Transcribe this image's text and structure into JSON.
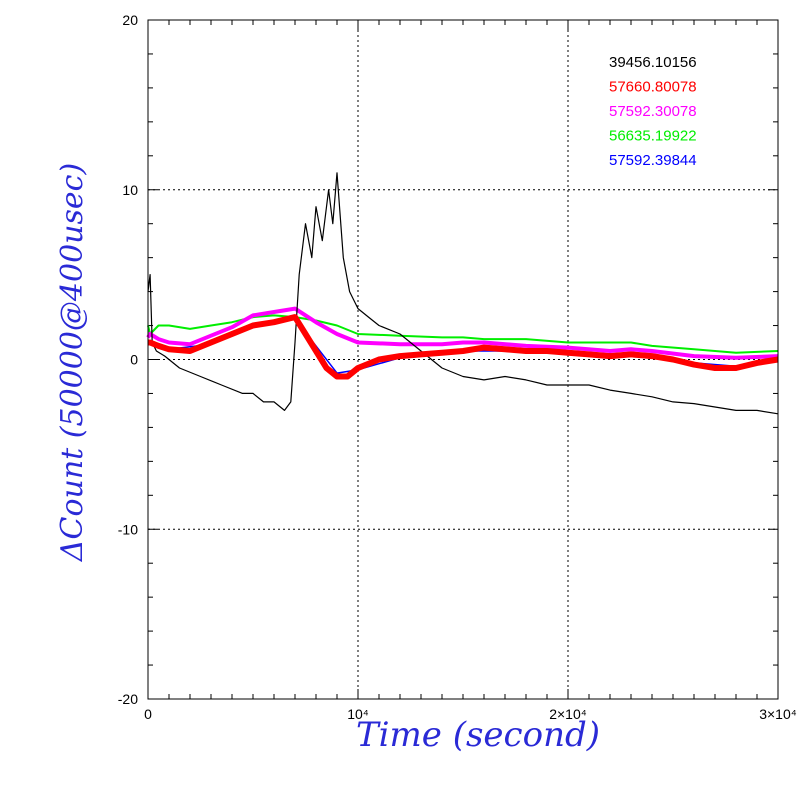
{
  "chart_data": {
    "type": "line",
    "xlabel": "Time (second)",
    "ylabel": "ΔCount (50000@400usec)",
    "xlim": [
      0,
      30000
    ],
    "ylim": [
      -20,
      20
    ],
    "grid": true,
    "legend_position": "top-right",
    "x_ticks": [
      {
        "value": 0,
        "label": "0"
      },
      {
        "value": 10000,
        "label": "10⁴"
      },
      {
        "value": 20000,
        "label": "2×10⁴"
      },
      {
        "value": 30000,
        "label": "3×10⁴"
      }
    ],
    "y_ticks": [
      {
        "value": 20,
        "label": "20"
      },
      {
        "value": 10,
        "label": "10"
      },
      {
        "value": 0,
        "label": "0"
      },
      {
        "value": -10,
        "label": "-10"
      },
      {
        "value": -20,
        "label": "-20"
      }
    ],
    "series": [
      {
        "name": "39456.10156",
        "color": "#000000",
        "x": [
          0,
          100,
          200,
          400,
          800,
          1500,
          2500,
          3500,
          4500,
          5000,
          5500,
          6000,
          6500,
          6800,
          7000,
          7200,
          7500,
          7800,
          8000,
          8300,
          8600,
          8800,
          9000,
          9300,
          9600,
          9800,
          10000,
          10500,
          11000,
          12000,
          13000,
          14000,
          15000,
          16000,
          17000,
          18000,
          19000,
          20000,
          21000,
          22000,
          23000,
          24000,
          25000,
          26000,
          27000,
          28000,
          29000,
          30000
        ],
        "y": [
          4,
          5,
          1,
          0.5,
          0.2,
          -0.5,
          -1,
          -1.5,
          -2,
          -2,
          -2.5,
          -2.5,
          -3,
          -2.5,
          1,
          5,
          8,
          6,
          9,
          7,
          10,
          8,
          11,
          6,
          4,
          3.5,
          3,
          2.5,
          2,
          1.5,
          0.5,
          -0.5,
          -1,
          -1.2,
          -1,
          -1.2,
          -1.5,
          -1.5,
          -1.5,
          -1.8,
          -2,
          -2.2,
          -2.5,
          -2.6,
          -2.8,
          -3,
          -3,
          -3.2
        ]
      },
      {
        "name": "57660.80078",
        "color": "#ff0000",
        "x": [
          0,
          100,
          500,
          1000,
          2000,
          3000,
          4000,
          5000,
          6000,
          7000,
          7500,
          8000,
          8500,
          9000,
          9500,
          10000,
          11000,
          12000,
          13000,
          14000,
          15000,
          16000,
          17000,
          18000,
          19000,
          20000,
          21000,
          22000,
          23000,
          24000,
          25000,
          26000,
          27000,
          28000,
          29000,
          30000
        ],
        "y": [
          1,
          1,
          0.8,
          0.6,
          0.5,
          1,
          1.5,
          2,
          2.2,
          2.5,
          1.5,
          0.5,
          -0.5,
          -1,
          -1,
          -0.5,
          0,
          0.2,
          0.3,
          0.4,
          0.5,
          0.7,
          0.6,
          0.5,
          0.5,
          0.4,
          0.3,
          0.2,
          0.3,
          0.2,
          0,
          -0.3,
          -0.5,
          -0.5,
          -0.2,
          0
        ]
      },
      {
        "name": "57592.30078",
        "color": "#ff00ff",
        "x": [
          0,
          100,
          500,
          1000,
          2000,
          3000,
          4000,
          5000,
          6000,
          7000,
          8000,
          9000,
          10000,
          12000,
          14000,
          15000,
          16000,
          18000,
          20000,
          22000,
          23000,
          24000,
          26000,
          28000,
          30000
        ],
        "y": [
          1.3,
          1.5,
          1.2,
          1,
          0.9,
          1.4,
          1.9,
          2.6,
          2.8,
          3,
          2.2,
          1.5,
          1,
          0.9,
          0.9,
          1,
          1,
          0.8,
          0.7,
          0.5,
          0.6,
          0.5,
          0.2,
          0.1,
          0.2
        ]
      },
      {
        "name": "56635.19922",
        "color": "#00ee00",
        "x": [
          0,
          100,
          500,
          1000,
          2000,
          3000,
          4000,
          5000,
          6000,
          7000,
          8000,
          9000,
          10000,
          12000,
          14000,
          15000,
          16000,
          18000,
          20000,
          22000,
          23000,
          24000,
          26000,
          28000,
          30000
        ],
        "y": [
          2,
          1.5,
          2,
          2,
          1.8,
          2,
          2.2,
          2.5,
          2.6,
          2.5,
          2.3,
          2,
          1.5,
          1.4,
          1.3,
          1.3,
          1.2,
          1.2,
          1,
          1,
          1,
          0.8,
          0.6,
          0.4,
          0.5
        ]
      },
      {
        "name": "57592.39844",
        "color": "#0000ff",
        "x": [
          0,
          1000,
          3000,
          5000,
          7000,
          9000,
          10000,
          12000,
          15000,
          18000,
          20000,
          23000,
          26000,
          28000,
          30000
        ],
        "y": [
          1,
          0.6,
          0.9,
          1.9,
          2.4,
          -0.8,
          -0.6,
          0.1,
          0.5,
          0.5,
          0.4,
          0.3,
          -0.2,
          -0.4,
          0
        ]
      }
    ]
  }
}
